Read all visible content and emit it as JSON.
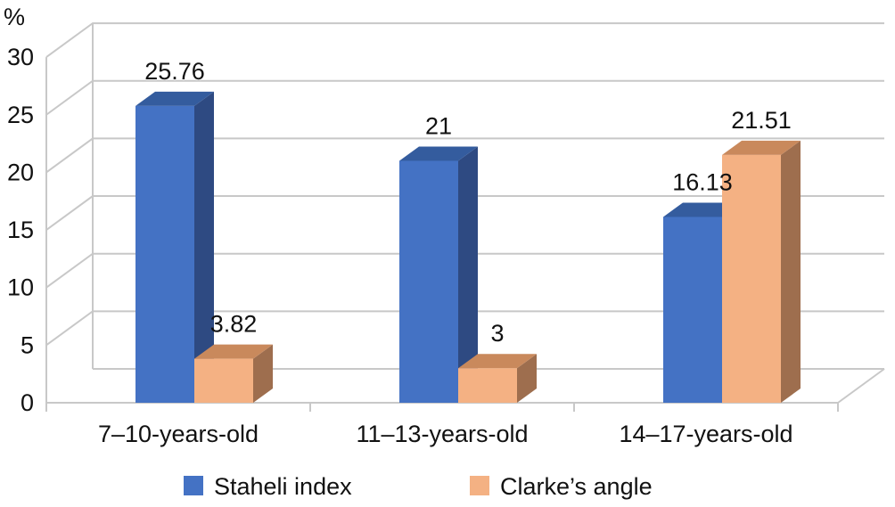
{
  "chart_data": {
    "type": "bar",
    "style": "3d-clustered-column",
    "unit_label": "%",
    "categories": [
      "7–10-years-old",
      "11–13-years-old",
      "14–17-years-old"
    ],
    "series": [
      {
        "name": "Staheli index",
        "values": [
          25.76,
          21,
          16.13
        ],
        "labels": [
          "25.76",
          "21",
          "16.13"
        ],
        "color_front": "#4472C4",
        "color_side": "#2E4A82",
        "color_top": "#345C9E"
      },
      {
        "name": "Clarke’s angle",
        "values": [
          3.82,
          3,
          21.51
        ],
        "labels": [
          "3.82",
          "3",
          "21.51"
        ],
        "color_front": "#F4B183",
        "color_side": "#9E6E4E",
        "color_top": "#C9895C"
      }
    ],
    "ylim": [
      0,
      30
    ],
    "yticks": [
      0,
      5,
      10,
      15,
      20,
      25,
      30
    ],
    "grid": true,
    "legend": "bottom"
  }
}
